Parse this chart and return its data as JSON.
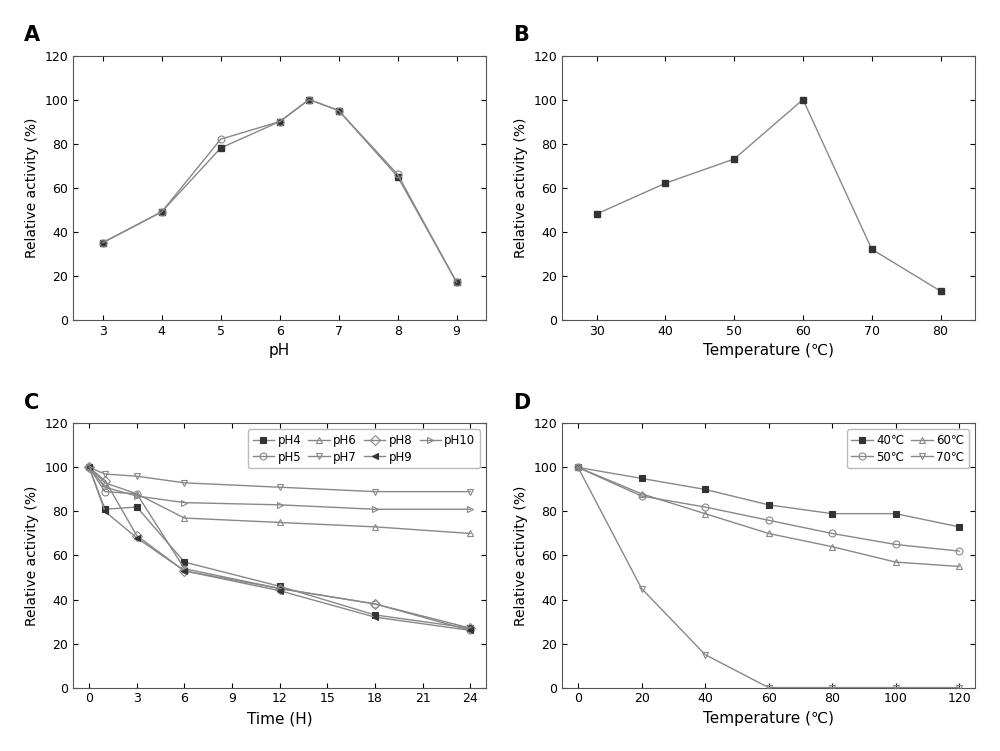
{
  "panel_A": {
    "label": "A",
    "x": [
      3,
      4,
      5,
      6,
      6.5,
      7,
      8,
      9
    ],
    "y_sq": [
      35,
      49,
      78,
      90,
      100,
      95,
      65,
      17
    ],
    "y_ci": [
      35,
      49,
      82,
      90,
      100,
      95,
      66,
      17
    ],
    "xlabel": "pH",
    "ylabel": "Relative activity (%)",
    "ylim": [
      0,
      120
    ],
    "xlim": [
      2.5,
      9.5
    ],
    "xticks": [
      3,
      4,
      5,
      6,
      7,
      8,
      9
    ],
    "yticks": [
      0,
      20,
      40,
      60,
      80,
      100,
      120
    ]
  },
  "panel_B": {
    "label": "B",
    "x": [
      30,
      40,
      50,
      60,
      70,
      80
    ],
    "y": [
      48,
      62,
      73,
      100,
      32,
      13
    ],
    "xlabel": "Temperature (℃)",
    "ylabel": "Relative activity (%)",
    "ylim": [
      0,
      120
    ],
    "xlim": [
      25,
      85
    ],
    "xticks": [
      30,
      40,
      50,
      60,
      70,
      80
    ],
    "yticks": [
      0,
      20,
      40,
      60,
      80,
      100,
      120
    ]
  },
  "panel_C": {
    "label": "C",
    "x": [
      0,
      1,
      3,
      6,
      12,
      18,
      24
    ],
    "series": {
      "pH4": [
        100,
        81,
        82,
        57,
        46,
        33,
        27
      ],
      "pH5": [
        100,
        89,
        88,
        54,
        45,
        38,
        26
      ],
      "pH6": [
        100,
        93,
        88,
        77,
        75,
        73,
        70
      ],
      "pH7": [
        100,
        97,
        96,
        93,
        91,
        89,
        89
      ],
      "pH8": [
        100,
        94,
        69,
        53,
        45,
        38,
        27
      ],
      "pH9": [
        100,
        80,
        68,
        53,
        44,
        32,
        26
      ],
      "pH10": [
        100,
        91,
        87,
        84,
        83,
        81,
        81
      ]
    },
    "markers": {
      "pH4": "s",
      "pH5": "o",
      "pH6": "^",
      "pH7": "v",
      "pH8": "D",
      "pH9": "<",
      "pH10": ">"
    },
    "filled": {
      "pH4": true,
      "pH5": false,
      "pH6": false,
      "pH7": false,
      "pH8": false,
      "pH9": true,
      "pH10": false
    },
    "xlabel": "Time (H)",
    "ylabel": "Relative activity (%)",
    "ylim": [
      0,
      120
    ],
    "xlim": [
      -1,
      25
    ],
    "xticks": [
      0,
      3,
      6,
      9,
      12,
      15,
      18,
      21,
      24
    ],
    "yticks": [
      0,
      20,
      40,
      60,
      80,
      100,
      120
    ]
  },
  "panel_D": {
    "label": "D",
    "x": [
      0,
      20,
      40,
      60,
      80,
      100,
      120
    ],
    "series": {
      "40℃": [
        100,
        95,
        90,
        83,
        79,
        79,
        73
      ],
      "50℃": [
        100,
        87,
        82,
        76,
        70,
        65,
        62
      ],
      "60℃": [
        100,
        88,
        79,
        70,
        64,
        57,
        55
      ],
      "70℃": [
        100,
        45,
        15,
        0,
        0,
        0,
        0
      ]
    },
    "markers": {
      "40℃": "s",
      "50℃": "o",
      "60℃": "^",
      "70℃": "v"
    },
    "filled": {
      "40℃": true,
      "50℃": false,
      "60℃": false,
      "70℃": false
    },
    "xlabel": "Temperature (℃)",
    "ylabel": "Relative activity (%)",
    "ylim": [
      0,
      120
    ],
    "xlim": [
      -5,
      125
    ],
    "xticks": [
      0,
      20,
      40,
      60,
      80,
      100,
      120
    ],
    "yticks": [
      0,
      20,
      40,
      60,
      80,
      100,
      120
    ]
  },
  "line_color": "#888888",
  "marker_color_filled": "#333333",
  "marker_color_open": "#888888",
  "marker_size": 5,
  "linewidth": 1.0,
  "font_size": 10,
  "label_font_size": 11,
  "tick_font_size": 9
}
